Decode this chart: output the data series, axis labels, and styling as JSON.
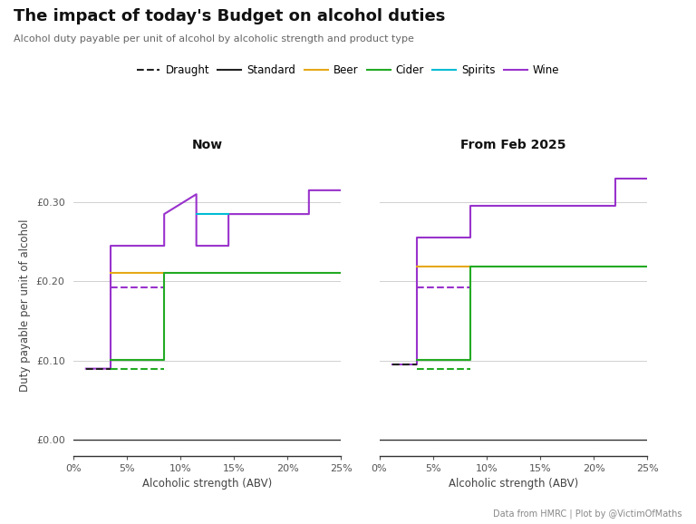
{
  "title": "The impact of today's Budget on alcohol duties",
  "subtitle": "Alcohol duty payable per unit of alcohol by alcoholic strength and product type",
  "xlabel": "Alcoholic strength (ABV)",
  "ylabel": "Duty payable per unit of alcohol",
  "footnote": "Data from HMRC | Plot by @VictimOfMaths",
  "panel_left_title": "Now",
  "panel_right_title": "From Feb 2025",
  "background_color": "#ffffff",
  "grid_color": "#d0d0d0",
  "colors": {
    "wine": "#9932cc",
    "beer": "#e6a817",
    "cider": "#22aa22",
    "spirits": "#00bcd4",
    "dark": "#222222"
  },
  "now": {
    "wine_solid": {
      "comment": "standard wine rate by abv",
      "x": [
        1.2,
        3.5,
        3.5,
        8.5,
        8.5,
        11.5,
        11.5,
        14.5,
        14.5,
        22.0,
        22.0,
        25.0
      ],
      "y": [
        0.09,
        0.09,
        0.245,
        0.245,
        0.285,
        0.31,
        0.245,
        0.245,
        0.285,
        0.285,
        0.315,
        0.315
      ]
    },
    "wine_draught": {
      "comment": "draught wine rate",
      "x": [
        3.5,
        8.5
      ],
      "y": [
        0.192,
        0.192
      ]
    },
    "beer_standard": {
      "x": [
        3.5,
        8.5
      ],
      "y": [
        0.211,
        0.211
      ]
    },
    "beer_draught": {
      "x": [
        1.2,
        3.5
      ],
      "y": [
        0.09,
        0.09
      ]
    },
    "cider_standard": {
      "x": [
        3.5,
        8.5,
        8.5,
        25.0
      ],
      "y": [
        0.101,
        0.101,
        0.211,
        0.211
      ]
    },
    "cider_draught": {
      "x": [
        3.5,
        8.5
      ],
      "y": [
        0.09,
        0.09
      ]
    },
    "spirits": {
      "x": [
        11.5,
        14.5
      ],
      "y": [
        0.285,
        0.285
      ]
    }
  },
  "feb2025": {
    "wine_solid": {
      "x": [
        1.2,
        3.5,
        3.5,
        8.5,
        8.5,
        22.0,
        22.0,
        25.0
      ],
      "y": [
        0.095,
        0.095,
        0.255,
        0.255,
        0.295,
        0.295,
        0.33,
        0.33
      ]
    },
    "wine_draught": {
      "x": [
        3.5,
        8.5
      ],
      "y": [
        0.192,
        0.192
      ]
    },
    "beer_standard": {
      "x": [
        3.5,
        8.5
      ],
      "y": [
        0.219,
        0.219
      ]
    },
    "beer_draught": {
      "x": [
        1.2,
        3.5
      ],
      "y": [
        0.095,
        0.095
      ]
    },
    "cider_standard": {
      "x": [
        3.5,
        8.5,
        8.5,
        25.0
      ],
      "y": [
        0.101,
        0.101,
        0.219,
        0.219
      ]
    },
    "cider_draught": {
      "x": [
        3.5,
        8.5
      ],
      "y": [
        0.09,
        0.09
      ]
    }
  },
  "ylim": [
    -0.02,
    0.36
  ],
  "yticks": [
    0.0,
    0.1,
    0.2,
    0.3
  ],
  "ytick_labels": [
    "£0.00",
    "£0.10",
    "£0.20",
    "£0.30"
  ],
  "xticks": [
    0,
    5,
    10,
    15,
    20,
    25
  ],
  "xtick_labels": [
    "0%",
    "5%",
    "10%",
    "15%",
    "20%",
    "25%"
  ]
}
